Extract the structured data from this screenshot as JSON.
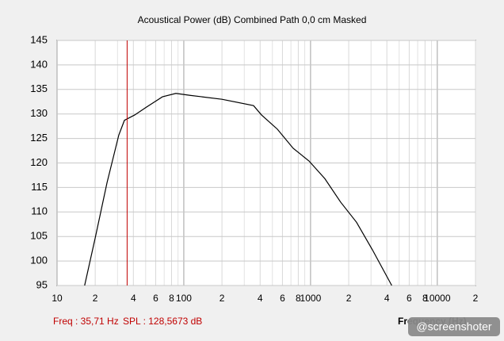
{
  "chart_data": {
    "type": "line",
    "title": "Acoustical Power (dB)   Combined   Path 0,0 cm   Masked",
    "x_label": "Frequency (Hz)",
    "log_x": true,
    "xlim": [
      10,
      20000
    ],
    "ylim": [
      95,
      145
    ],
    "xticks": [
      10,
      {
        "value": 20,
        "label": "2"
      },
      {
        "value": 40,
        "label": "4"
      },
      {
        "value": 60,
        "label": "6"
      },
      {
        "value": 80,
        "label": "8"
      },
      100,
      {
        "value": 200,
        "label": "2"
      },
      {
        "value": 400,
        "label": "4"
      },
      {
        "value": 600,
        "label": "6"
      },
      {
        "value": 800,
        "label": "8"
      },
      1000,
      {
        "value": 2000,
        "label": "2"
      },
      {
        "value": 4000,
        "label": "4"
      },
      {
        "value": 6000,
        "label": "6"
      },
      {
        "value": 8000,
        "label": "8"
      },
      10000,
      {
        "value": 20000,
        "label": "2"
      }
    ],
    "x_minor_grid": [
      30,
      50,
      70,
      90,
      300,
      500,
      700,
      900,
      3000,
      5000,
      7000,
      9000
    ],
    "yticks": [
      95,
      100,
      105,
      110,
      115,
      120,
      125,
      130,
      135,
      140,
      145
    ],
    "grid": true,
    "series": [
      {
        "color": "#000000",
        "x": [
          16.5,
          20,
          24.8,
          30.7,
          34,
          41,
          50.8,
          67.8,
          86.6,
          112,
          200,
          355,
          410,
          547,
          729,
          972,
          1296,
          1728,
          2305,
          3073,
          4370
        ],
        "values": [
          95,
          104.7,
          116,
          125.7,
          128.7,
          129.8,
          131.4,
          133.5,
          134.2,
          133.8,
          133,
          131.7,
          129.8,
          126.9,
          123,
          120.4,
          116.8,
          112,
          107.9,
          102.3,
          95
        ]
      }
    ],
    "cursor": {
      "x": 35.71,
      "color": "#c00000",
      "freq_label": "Freq : 35,71 Hz",
      "spl_label": "SPL : 128,5673 dB"
    },
    "watermark": "@screenshoter"
  }
}
